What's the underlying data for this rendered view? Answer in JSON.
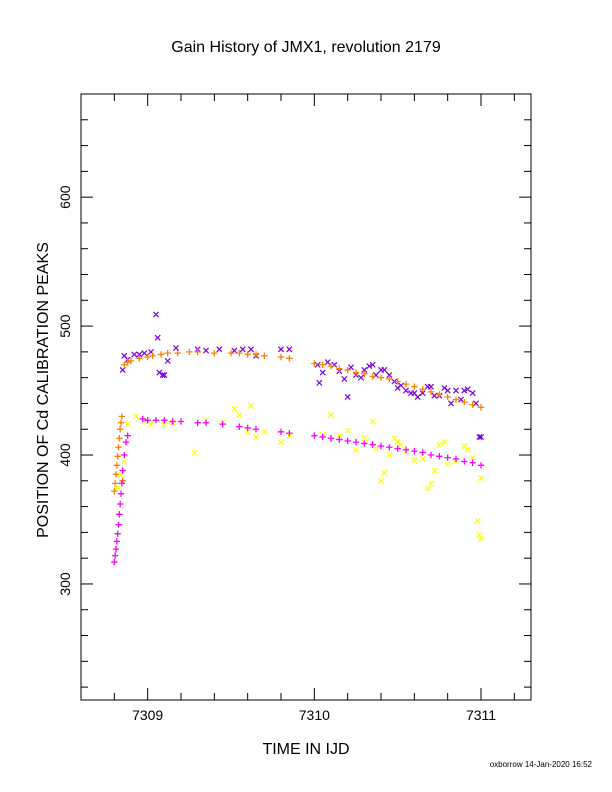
{
  "chart_data": {
    "type": "scatter",
    "title": "Gain History of JMX1, revolution 2179",
    "xlabel": "TIME IN IJD",
    "ylabel": "POSITION OF Cd CALIBRATION PEAKS",
    "xlim": [
      7308.6,
      7311.3
    ],
    "ylim": [
      210,
      680
    ],
    "xticks": [
      7309,
      7310,
      7311
    ],
    "yticks": [
      300,
      400,
      500,
      600
    ],
    "grid": false,
    "series": [
      {
        "marker": "x",
        "color": "#7B00E0",
        "points": [
          [
            7308.85,
            466
          ],
          [
            7308.86,
            477
          ],
          [
            7308.88,
            474
          ],
          [
            7308.92,
            478
          ],
          [
            7308.95,
            478
          ],
          [
            7308.98,
            479
          ],
          [
            7309.02,
            480
          ],
          [
            7309.05,
            509
          ],
          [
            7309.06,
            491
          ],
          [
            7309.07,
            464
          ],
          [
            7309.09,
            462
          ],
          [
            7309.1,
            462
          ],
          [
            7309.12,
            473
          ],
          [
            7309.17,
            483
          ],
          [
            7309.3,
            482
          ],
          [
            7309.35,
            481
          ],
          [
            7309.43,
            482
          ],
          [
            7309.52,
            481
          ],
          [
            7309.57,
            482
          ],
          [
            7309.62,
            482
          ],
          [
            7309.65,
            477
          ],
          [
            7309.8,
            482
          ],
          [
            7309.85,
            482
          ],
          [
            7310.02,
            470
          ],
          [
            7310.03,
            456
          ],
          [
            7310.05,
            464
          ],
          [
            7310.08,
            472
          ],
          [
            7310.12,
            470
          ],
          [
            7310.15,
            465
          ],
          [
            7310.18,
            459
          ],
          [
            7310.2,
            445
          ],
          [
            7310.22,
            468
          ],
          [
            7310.25,
            462
          ],
          [
            7310.28,
            460
          ],
          [
            7310.3,
            466
          ],
          [
            7310.33,
            469
          ],
          [
            7310.35,
            470
          ],
          [
            7310.37,
            462
          ],
          [
            7310.4,
            466
          ],
          [
            7310.42,
            466
          ],
          [
            7310.45,
            462
          ],
          [
            7310.48,
            457
          ],
          [
            7310.5,
            452
          ],
          [
            7310.52,
            454
          ],
          [
            7310.55,
            450
          ],
          [
            7310.58,
            448
          ],
          [
            7310.6,
            448
          ],
          [
            7310.62,
            445
          ],
          [
            7310.65,
            448
          ],
          [
            7310.68,
            453
          ],
          [
            7310.7,
            453
          ],
          [
            7310.72,
            446
          ],
          [
            7310.75,
            446
          ],
          [
            7310.78,
            452
          ],
          [
            7310.8,
            450
          ],
          [
            7310.82,
            440
          ],
          [
            7310.85,
            450
          ],
          [
            7310.88,
            443
          ],
          [
            7310.9,
            450
          ],
          [
            7310.92,
            451
          ],
          [
            7310.95,
            448
          ],
          [
            7310.97,
            440
          ],
          [
            7310.99,
            414
          ],
          [
            7311.0,
            414
          ]
        ]
      },
      {
        "marker": "plus",
        "color": "#FF8000",
        "points": [
          [
            7308.8,
            372
          ],
          [
            7308.805,
            378
          ],
          [
            7308.81,
            385
          ],
          [
            7308.815,
            392
          ],
          [
            7308.82,
            399
          ],
          [
            7308.825,
            406
          ],
          [
            7308.83,
            413
          ],
          [
            7308.835,
            420
          ],
          [
            7308.84,
            425
          ],
          [
            7308.845,
            430
          ],
          [
            7308.85,
            380
          ],
          [
            7308.86,
            470
          ],
          [
            7308.88,
            472
          ],
          [
            7308.9,
            473
          ],
          [
            7308.95,
            475
          ],
          [
            7309.0,
            476
          ],
          [
            7309.03,
            477
          ],
          [
            7309.08,
            478
          ],
          [
            7309.12,
            479
          ],
          [
            7309.18,
            479
          ],
          [
            7309.25,
            480
          ],
          [
            7309.3,
            480
          ],
          [
            7309.4,
            479
          ],
          [
            7309.5,
            479
          ],
          [
            7309.55,
            479
          ],
          [
            7309.6,
            478
          ],
          [
            7309.65,
            478
          ],
          [
            7309.7,
            477
          ],
          [
            7309.8,
            476
          ],
          [
            7309.85,
            475
          ],
          [
            7310.0,
            471
          ],
          [
            7310.05,
            470
          ],
          [
            7310.1,
            469
          ],
          [
            7310.15,
            467
          ],
          [
            7310.2,
            466
          ],
          [
            7310.25,
            464
          ],
          [
            7310.3,
            463
          ],
          [
            7310.35,
            461
          ],
          [
            7310.4,
            460
          ],
          [
            7310.45,
            459
          ],
          [
            7310.5,
            457
          ],
          [
            7310.55,
            455
          ],
          [
            7310.6,
            453
          ],
          [
            7310.65,
            451
          ],
          [
            7310.7,
            449
          ],
          [
            7310.75,
            447
          ],
          [
            7310.8,
            445
          ],
          [
            7310.85,
            443
          ],
          [
            7310.9,
            441
          ],
          [
            7310.95,
            439
          ],
          [
            7311.0,
            437
          ]
        ]
      },
      {
        "marker": "x",
        "color": "#FFFF00",
        "points": [
          [
            7308.82,
            375
          ],
          [
            7308.84,
            385
          ],
          [
            7308.86,
            395
          ],
          [
            7308.88,
            424
          ],
          [
            7308.93,
            430
          ],
          [
            7308.98,
            426
          ],
          [
            7309.02,
            424
          ],
          [
            7309.1,
            424
          ],
          [
            7309.15,
            425
          ],
          [
            7309.28,
            402
          ],
          [
            7309.35,
            427
          ],
          [
            7309.45,
            425
          ],
          [
            7309.52,
            436
          ],
          [
            7309.55,
            431
          ],
          [
            7309.6,
            418
          ],
          [
            7309.62,
            438
          ],
          [
            7309.65,
            414
          ],
          [
            7309.7,
            418
          ],
          [
            7309.8,
            410
          ],
          [
            7309.85,
            415
          ],
          [
            7310.05,
            416
          ],
          [
            7310.1,
            431
          ],
          [
            7310.15,
            415
          ],
          [
            7310.2,
            419
          ],
          [
            7310.25,
            404
          ],
          [
            7310.3,
            413
          ],
          [
            7310.35,
            426
          ],
          [
            7310.37,
            405
          ],
          [
            7310.4,
            380
          ],
          [
            7310.42,
            386
          ],
          [
            7310.45,
            400
          ],
          [
            7310.48,
            413
          ],
          [
            7310.5,
            410
          ],
          [
            7310.52,
            408
          ],
          [
            7310.55,
            403
          ],
          [
            7310.6,
            396
          ],
          [
            7310.65,
            397
          ],
          [
            7310.68,
            374
          ],
          [
            7310.7,
            378
          ],
          [
            7310.72,
            388
          ],
          [
            7310.75,
            408
          ],
          [
            7310.78,
            410
          ],
          [
            7310.8,
            393
          ],
          [
            7310.85,
            395
          ],
          [
            7310.9,
            407
          ],
          [
            7310.92,
            404
          ],
          [
            7310.95,
            398
          ],
          [
            7310.98,
            349
          ],
          [
            7310.99,
            338
          ],
          [
            7311.0,
            335
          ],
          [
            7311.0,
            382
          ]
        ]
      },
      {
        "marker": "plus",
        "color": "#FF00FF",
        "points": [
          [
            7308.8,
            317
          ],
          [
            7308.805,
            322
          ],
          [
            7308.81,
            327
          ],
          [
            7308.815,
            333
          ],
          [
            7308.82,
            339
          ],
          [
            7308.825,
            346
          ],
          [
            7308.83,
            354
          ],
          [
            7308.835,
            362
          ],
          [
            7308.84,
            370
          ],
          [
            7308.845,
            378
          ],
          [
            7308.85,
            388
          ],
          [
            7308.86,
            400
          ],
          [
            7308.87,
            410
          ],
          [
            7308.88,
            415
          ],
          [
            7308.97,
            428
          ],
          [
            7309.0,
            427
          ],
          [
            7309.05,
            427
          ],
          [
            7309.1,
            427
          ],
          [
            7309.15,
            426
          ],
          [
            7309.2,
            426
          ],
          [
            7309.3,
            425
          ],
          [
            7309.35,
            425
          ],
          [
            7309.45,
            424
          ],
          [
            7309.55,
            422
          ],
          [
            7309.6,
            421
          ],
          [
            7309.65,
            420
          ],
          [
            7309.8,
            418
          ],
          [
            7309.85,
            417
          ],
          [
            7310.0,
            415
          ],
          [
            7310.05,
            414
          ],
          [
            7310.1,
            413
          ],
          [
            7310.15,
            412
          ],
          [
            7310.2,
            411
          ],
          [
            7310.25,
            410
          ],
          [
            7310.3,
            409
          ],
          [
            7310.35,
            408
          ],
          [
            7310.4,
            407
          ],
          [
            7310.45,
            406
          ],
          [
            7310.5,
            405
          ],
          [
            7310.55,
            404
          ],
          [
            7310.6,
            403
          ],
          [
            7310.65,
            402
          ],
          [
            7310.7,
            400
          ],
          [
            7310.75,
            399
          ],
          [
            7310.8,
            398
          ],
          [
            7310.85,
            397
          ],
          [
            7310.9,
            395
          ],
          [
            7310.95,
            394
          ],
          [
            7311.0,
            392
          ]
        ]
      }
    ]
  },
  "footer": "oxborrow 14-Jan-2020 16:52"
}
